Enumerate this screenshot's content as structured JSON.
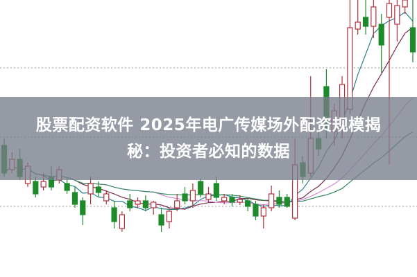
{
  "title": {
    "line1": "股票配资软件 2025年电广传媒场外配资规模揭",
    "line2": "秘：投资者必知的数据"
  },
  "colors": {
    "up": "#b5303a",
    "down": "#1f8a2c",
    "overlay": "#787e8a",
    "grid": "#9a9a9a",
    "ma": [
      "#2a7f8a",
      "#7a2b4f",
      "#d48ad8",
      "#2f8a5a"
    ]
  },
  "chart_data": {
    "type": "candlestick",
    "title": "",
    "xlabel": "",
    "ylabel": "",
    "ylim": [
      0,
      400
    ],
    "grid": "horizontal dotted",
    "moving_average_periods": [
      5,
      10,
      20,
      30
    ],
    "candles": [
      [
        190,
        150,
        200,
        145
      ],
      [
        155,
        170,
        180,
        150
      ],
      [
        170,
        145,
        185,
        140
      ],
      [
        135,
        160,
        165,
        130
      ],
      [
        138,
        120,
        145,
        115
      ],
      [
        130,
        138,
        150,
        125
      ],
      [
        145,
        130,
        160,
        125
      ],
      [
        140,
        155,
        160,
        135
      ],
      [
        135,
        125,
        142,
        120
      ],
      [
        122,
        105,
        130,
        100
      ],
      [
        110,
        90,
        115,
        75
      ],
      [
        120,
        135,
        145,
        105
      ],
      [
        130,
        122,
        138,
        115
      ],
      [
        110,
        120,
        125,
        105
      ],
      [
        100,
        80,
        110,
        70
      ],
      [
        70,
        90,
        95,
        65
      ],
      [
        110,
        100,
        120,
        95
      ],
      [
        105,
        110,
        115,
        100
      ],
      [
        110,
        100,
        118,
        95
      ],
      [
        100,
        108,
        110,
        90
      ],
      [
        90,
        75,
        100,
        65
      ],
      [
        80,
        95,
        100,
        70
      ],
      [
        100,
        110,
        120,
        95
      ],
      [
        120,
        110,
        130,
        105
      ],
      [
        110,
        125,
        135,
        100
      ],
      [
        138,
        120,
        142,
        115
      ],
      [
        112,
        120,
        130,
        108
      ],
      [
        135,
        115,
        145,
        110
      ],
      [
        110,
        115,
        120,
        105
      ],
      [
        115,
        108,
        120,
        102
      ],
      [
        108,
        112,
        118,
        104
      ],
      [
        110,
        102,
        115,
        95
      ],
      [
        105,
        88,
        110,
        82
      ],
      [
        88,
        100,
        105,
        70
      ],
      [
        100,
        120,
        132,
        95
      ],
      [
        115,
        105,
        125,
        100
      ],
      [
        115,
        102,
        120,
        100
      ],
      [
        85,
        162,
        200,
        82
      ],
      [
        165,
        145,
        175,
        135
      ],
      [
        150,
        200,
        290,
        145
      ],
      [
        200,
        185,
        220,
        175
      ],
      [
        275,
        215,
        300,
        200
      ],
      [
        210,
        240,
        250,
        190
      ],
      [
        230,
        278,
        290,
        200
      ],
      [
        242,
        360,
        400,
        235
      ],
      [
        358,
        368,
        400,
        350
      ],
      [
        375,
        362,
        400,
        350
      ],
      [
        362,
        390,
        400,
        345
      ],
      [
        365,
        335,
        380,
        295
      ],
      [
        375,
        395,
        400,
        163
      ],
      [
        365,
        392,
        400,
        340
      ],
      [
        390,
        400,
        400,
        380
      ],
      [
        360,
        325,
        400,
        310
      ]
    ]
  }
}
